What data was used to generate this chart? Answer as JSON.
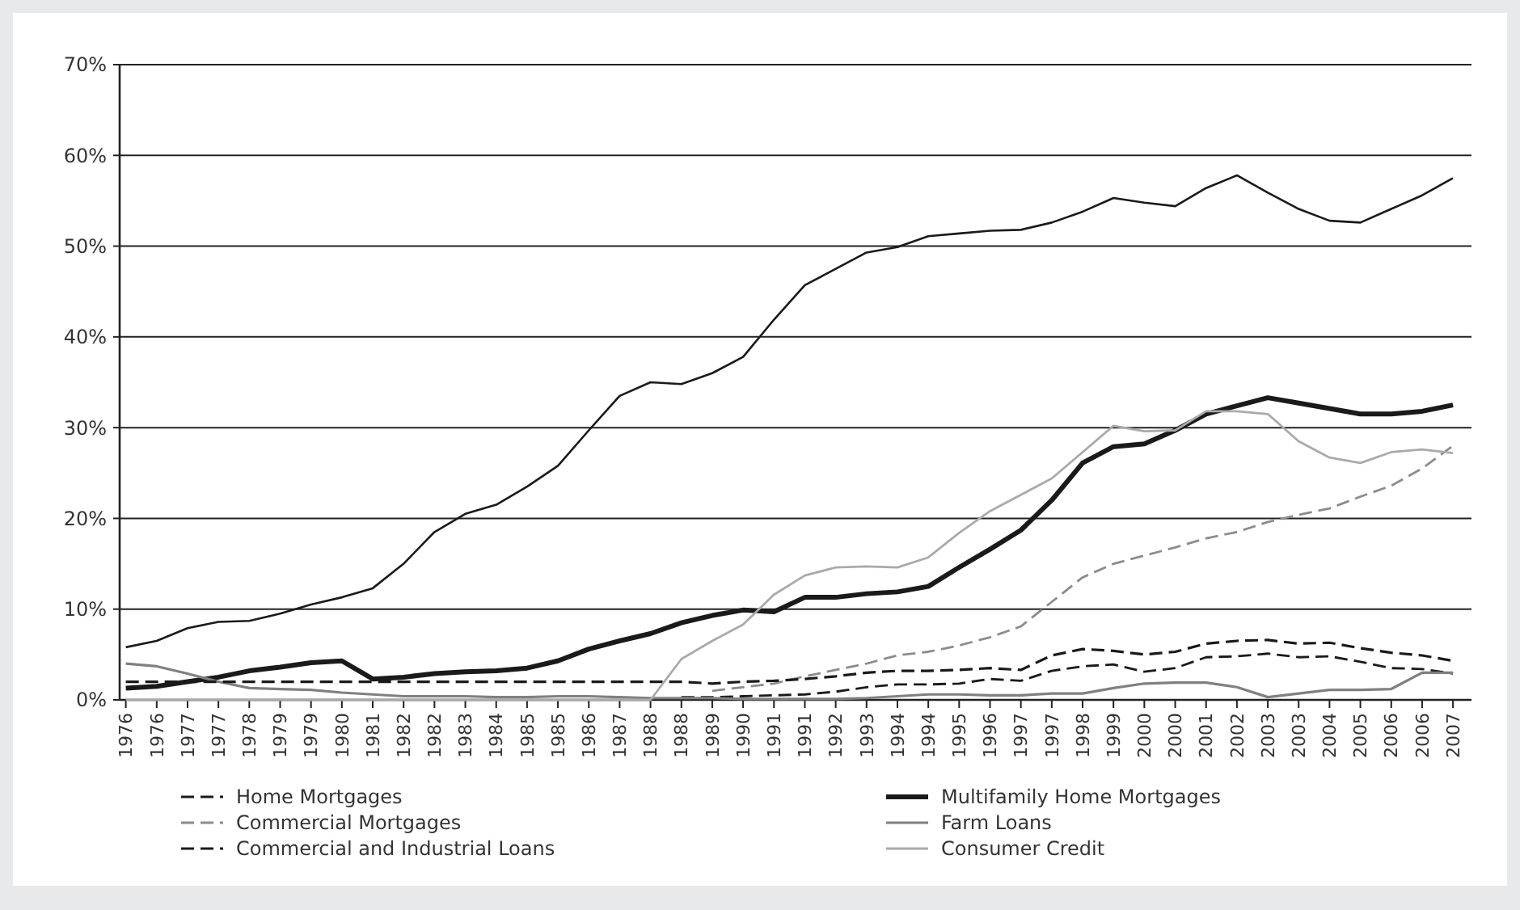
{
  "chart_data": {
    "type": "line",
    "categories": [
      "1976",
      "1976",
      "1977",
      "1977",
      "1978",
      "1979",
      "1979",
      "1980",
      "1981",
      "1982",
      "1982",
      "1983",
      "1984",
      "1985",
      "1985",
      "1986",
      "1987",
      "1988",
      "1988",
      "1989",
      "1990",
      "1991",
      "1991",
      "1992",
      "1993",
      "1994",
      "1994",
      "1995",
      "1996",
      "1997",
      "1997",
      "1998",
      "1999",
      "2000",
      "2000",
      "2001",
      "2002",
      "2003",
      "2003",
      "2004",
      "2005",
      "2006",
      "2006",
      "2007"
    ],
    "ylim": [
      0,
      70
    ],
    "yticks": [
      {
        "value": 0,
        "label": "0%"
      },
      {
        "value": 10,
        "label": "10%"
      },
      {
        "value": 20,
        "label": "20%"
      },
      {
        "value": 30,
        "label": "30%"
      },
      {
        "value": 40,
        "label": "40%"
      },
      {
        "value": 50,
        "label": "50%"
      },
      {
        "value": 60,
        "label": "60%"
      },
      {
        "value": 70,
        "label": "70%"
      }
    ],
    "grid": "y",
    "legend": "bottom",
    "series": [
      {
        "name": "Home Mortgages",
        "color": "#1a1a1a",
        "line_style": "dashed",
        "values": [
          null,
          null,
          null,
          null,
          null,
          null,
          null,
          null,
          null,
          null,
          null,
          null,
          null,
          null,
          null,
          null,
          null,
          null,
          0.3,
          0.3,
          0.4,
          0.5,
          0.6,
          0.9,
          1.4,
          1.7,
          1.7,
          1.8,
          2.3,
          2.1,
          3.2,
          3.7,
          3.9,
          3.1,
          3.5,
          4.7,
          4.8,
          5.1,
          4.7,
          4.8,
          4.2,
          3.5,
          3.4,
          2.9
        ]
      },
      {
        "name": "Multifamily Home Mortgages",
        "color": "#1a1a1a",
        "line_style": "solid",
        "values": [
          1.3,
          1.5,
          2.0,
          2.5,
          3.2,
          3.6,
          4.1,
          4.3,
          2.3,
          2.5,
          2.9,
          3.1,
          3.2,
          3.5,
          4.3,
          5.6,
          6.5,
          7.3,
          8.5,
          9.3,
          9.9,
          9.7,
          11.3,
          11.3,
          11.7,
          11.9,
          12.5,
          14.6,
          16.6,
          18.7,
          22.0,
          26.1,
          27.9,
          28.2,
          29.7,
          31.5,
          32.4,
          33.3,
          32.7,
          32.1,
          31.5,
          31.5,
          31.8,
          32.5
        ]
      },
      {
        "name": "Commercial Mortgages",
        "color": "#8c8c8c",
        "line_style": "dashed",
        "values": [
          null,
          null,
          null,
          null,
          null,
          null,
          null,
          null,
          null,
          null,
          null,
          null,
          null,
          null,
          null,
          null,
          null,
          null,
          null,
          1.0,
          1.4,
          1.8,
          2.6,
          3.3,
          4.0,
          4.9,
          5.3,
          6.0,
          6.9,
          8.1,
          10.8,
          13.5,
          15.0,
          15.9,
          16.8,
          17.8,
          18.5,
          19.6,
          20.4,
          21.1,
          22.4,
          23.6,
          25.5,
          28.0
        ]
      },
      {
        "name": "Farm Loans",
        "color": "#808080",
        "line_style": "solid",
        "values": [
          4.0,
          3.7,
          2.9,
          2.0,
          1.3,
          1.2,
          1.1,
          0.8,
          0.6,
          0.4,
          0.4,
          0.4,
          0.3,
          0.3,
          0.4,
          0.4,
          0.3,
          0.2,
          0.2,
          0.2,
          0.1,
          0.1,
          0.1,
          0.1,
          0.2,
          0.4,
          0.6,
          0.6,
          0.5,
          0.5,
          0.7,
          0.7,
          1.3,
          1.8,
          1.9,
          1.9,
          1.4,
          0.3,
          0.7,
          1.1,
          1.1,
          1.2,
          3.0,
          3.0
        ]
      },
      {
        "name": "Commercial and Industrial Loans",
        "color": "#1a1a1a",
        "line_style": "dashed",
        "values": [
          2.0,
          2.0,
          2.0,
          2.0,
          2.0,
          2.0,
          2.0,
          2.0,
          2.0,
          2.0,
          2.0,
          2.0,
          2.0,
          2.0,
          2.0,
          2.0,
          2.0,
          2.0,
          2.0,
          1.8,
          2.0,
          2.1,
          2.3,
          2.6,
          3.0,
          3.2,
          3.2,
          3.3,
          3.5,
          3.3,
          4.9,
          5.6,
          5.4,
          5.0,
          5.3,
          6.2,
          6.5,
          6.6,
          6.2,
          6.3,
          5.7,
          5.2,
          4.9,
          4.3
        ]
      },
      {
        "name": "Consumer Credit",
        "color": "#aaaaaa",
        "line_style": "solid",
        "values": [
          0,
          0,
          0,
          0,
          0,
          0,
          0,
          0,
          0,
          0,
          0,
          0,
          0,
          0,
          0,
          0,
          0,
          0,
          4.5,
          6.5,
          8.3,
          11.6,
          13.7,
          14.6,
          14.7,
          14.6,
          15.7,
          18.4,
          20.8,
          22.6,
          24.4,
          27.3,
          30.2,
          29.6,
          29.7,
          31.8,
          31.8,
          31.5,
          28.5,
          26.7,
          26.1,
          27.3,
          27.6,
          27.2
        ]
      },
      {
        "color": "#1a1a1a",
        "line_style": "solid",
        "values": [
          5.8,
          6.5,
          7.9,
          8.6,
          8.7,
          9.5,
          10.5,
          11.3,
          12.3,
          15.0,
          18.5,
          20.5,
          21.5,
          23.5,
          25.8,
          29.7,
          33.5,
          35.0,
          34.8,
          36.0,
          37.8,
          41.9,
          45.7,
          47.5,
          49.3,
          49.9,
          51.1,
          51.4,
          51.7,
          51.8,
          52.6,
          53.8,
          55.3,
          54.8,
          54.4,
          56.4,
          57.8,
          55.9,
          54.1,
          52.8,
          52.6,
          54.1,
          55.6,
          57.5
        ]
      }
    ]
  }
}
